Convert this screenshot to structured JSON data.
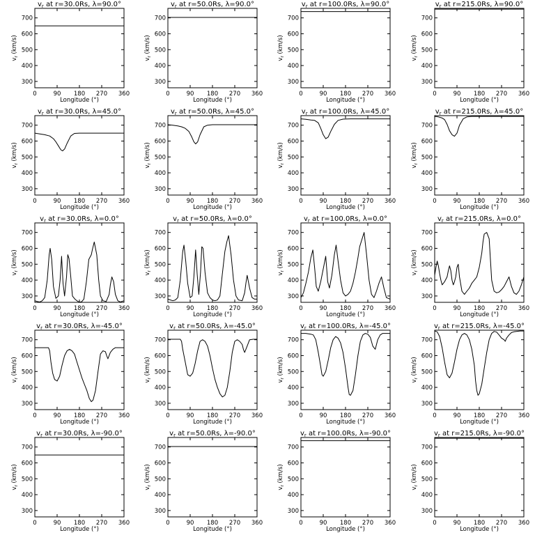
{
  "axis_common": {
    "xlabel": "Longitude (°)",
    "ylabel_main": "v",
    "ylabel_sub": "r",
    "ylabel_rest": " (km/s)",
    "xlim": [
      0,
      360
    ],
    "ylim": [
      260,
      760
    ],
    "xticks": [
      0,
      90,
      180,
      270,
      360
    ],
    "yticks": [
      300,
      400,
      500,
      600,
      700
    ]
  },
  "chart_data": [
    {
      "type": "line",
      "title_main": "v",
      "title_sub": "r",
      "title_rest": " at r=30.0Rs, λ=90.0°",
      "radius": "30.0Rs",
      "latitude": "90.0°",
      "x": [
        0,
        360
      ],
      "y": [
        650,
        650
      ]
    },
    {
      "type": "line",
      "title_main": "v",
      "title_sub": "r",
      "title_rest": " at r=50.0Rs, λ=90.0°",
      "radius": "50.0Rs",
      "latitude": "90.0°",
      "x": [
        0,
        360
      ],
      "y": [
        703,
        703
      ]
    },
    {
      "type": "line",
      "title_main": "v",
      "title_sub": "r",
      "title_rest": " at r=100.0Rs, λ=90.0°",
      "radius": "100.0Rs",
      "latitude": "90.0°",
      "x": [
        0,
        360
      ],
      "y": [
        740,
        740
      ]
    },
    {
      "type": "line",
      "title_main": "v",
      "title_sub": "r",
      "title_rest": " at r=215.0Rs, λ=90.0°",
      "radius": "215.0Rs",
      "latitude": "90.0°",
      "x": [
        0,
        360
      ],
      "y": [
        755,
        755
      ]
    },
    {
      "type": "line",
      "title_main": "v",
      "title_sub": "r",
      "title_rest": " at r=30.0Rs, λ=45.0°",
      "radius": "30.0Rs",
      "latitude": "45.0°",
      "x": [
        0,
        20,
        40,
        60,
        75,
        85,
        95,
        105,
        112,
        120,
        130,
        145,
        160,
        180,
        220,
        270,
        320,
        360
      ],
      "y": [
        650,
        645,
        640,
        632,
        615,
        595,
        570,
        545,
        538,
        550,
        585,
        632,
        648,
        650,
        650,
        650,
        650,
        650
      ]
    },
    {
      "type": "line",
      "title_main": "v",
      "title_sub": "r",
      "title_rest": " at r=50.0Rs, λ=45.0°",
      "radius": "50.0Rs",
      "latitude": "45.0°",
      "x": [
        0,
        20,
        40,
        55,
        70,
        85,
        95,
        105,
        112,
        120,
        130,
        145,
        160,
        180,
        220,
        270,
        320,
        360
      ],
      "y": [
        703,
        700,
        695,
        690,
        680,
        660,
        630,
        595,
        582,
        595,
        640,
        690,
        700,
        703,
        703,
        703,
        703,
        703
      ]
    },
    {
      "type": "line",
      "title_main": "v",
      "title_sub": "r",
      "title_rest": " at r=100.0Rs, λ=45.0°",
      "radius": "100.0Rs",
      "latitude": "45.0°",
      "x": [
        0,
        20,
        40,
        55,
        70,
        80,
        90,
        100,
        110,
        120,
        135,
        150,
        170,
        200,
        250,
        300,
        360
      ],
      "y": [
        740,
        737,
        733,
        730,
        715,
        680,
        640,
        615,
        625,
        660,
        705,
        730,
        738,
        740,
        740,
        740,
        740
      ]
    },
    {
      "type": "line",
      "title_main": "v",
      "title_sub": "r",
      "title_rest": " at r=215.0Rs, λ=45.0°",
      "radius": "215.0Rs",
      "latitude": "45.0°",
      "x": [
        0,
        15,
        30,
        40,
        50,
        60,
        70,
        80,
        90,
        100,
        115,
        130,
        150,
        180,
        230,
        290,
        360
      ],
      "y": [
        755,
        752,
        745,
        735,
        705,
        665,
        640,
        630,
        650,
        700,
        740,
        752,
        755,
        755,
        755,
        755,
        755
      ]
    },
    {
      "type": "line",
      "title_main": "v",
      "title_sub": "r",
      "title_rest": " at r=30.0Rs, λ=0.0°",
      "radius": "30.0Rs",
      "latitude": "0.0°",
      "x": [
        0,
        10,
        20,
        30,
        40,
        50,
        58,
        62,
        68,
        75,
        85,
        95,
        102,
        108,
        114,
        120,
        128,
        133,
        138,
        145,
        152,
        162,
        170,
        178,
        188,
        198,
        208,
        218,
        228,
        232,
        240,
        250,
        258,
        265,
        275,
        288,
        300,
        305,
        311,
        318,
        325,
        335,
        345,
        360
      ],
      "y": [
        270,
        265,
        262,
        270,
        290,
        400,
        560,
        600,
        530,
        360,
        285,
        300,
        400,
        550,
        380,
        300,
        420,
        560,
        535,
        420,
        300,
        280,
        270,
        262,
        262,
        280,
        390,
        530,
        560,
        590,
        640,
        560,
        400,
        300,
        270,
        265,
        310,
        370,
        420,
        390,
        310,
        270,
        262,
        270
      ]
    },
    {
      "type": "line",
      "title_main": "v",
      "title_sub": "r",
      "title_rest": " at r=50.0Rs, λ=0.0°",
      "radius": "50.0Rs",
      "latitude": "0.0°",
      "x": [
        0,
        10,
        20,
        30,
        40,
        50,
        60,
        65,
        72,
        80,
        90,
        98,
        105,
        112,
        118,
        125,
        132,
        137,
        142,
        150,
        160,
        170,
        180,
        190,
        200,
        210,
        220,
        230,
        238,
        245,
        255,
        265,
        275,
        285,
        300,
        310,
        315,
        320,
        330,
        340,
        350,
        360
      ],
      "y": [
        280,
        275,
        270,
        275,
        290,
        400,
        580,
        620,
        520,
        380,
        290,
        300,
        420,
        590,
        440,
        310,
        450,
        610,
        600,
        450,
        320,
        290,
        275,
        270,
        275,
        300,
        440,
        580,
        640,
        680,
        560,
        400,
        300,
        275,
        270,
        320,
        380,
        430,
        350,
        290,
        280,
        280
      ]
    },
    {
      "type": "line",
      "title_main": "v",
      "title_sub": "r",
      "title_rest": " at r=100.0Rs, λ=0.0°",
      "radius": "100.0Rs",
      "latitude": "0.0°",
      "x": [
        0,
        10,
        20,
        30,
        40,
        48,
        55,
        62,
        70,
        80,
        90,
        100,
        108,
        115,
        125,
        135,
        142,
        150,
        160,
        170,
        180,
        190,
        200,
        210,
        220,
        230,
        237,
        245,
        255,
        265,
        275,
        285,
        295,
        305,
        315,
        325,
        335,
        345,
        360
      ],
      "y": [
        290,
        320,
        380,
        450,
        540,
        590,
        480,
        360,
        330,
        390,
        470,
        550,
        390,
        350,
        430,
        560,
        620,
        520,
        400,
        320,
        300,
        310,
        330,
        380,
        450,
        540,
        610,
        650,
        700,
        560,
        400,
        310,
        290,
        330,
        380,
        420,
        350,
        290,
        280
      ]
    },
    {
      "type": "line",
      "title_main": "v",
      "title_sub": "r",
      "title_rest": " at r=215.0Rs, λ=0.0°",
      "radius": "215.0Rs",
      "latitude": "0.0°",
      "x": [
        0,
        5,
        10,
        15,
        20,
        25,
        30,
        40,
        50,
        55,
        60,
        65,
        70,
        75,
        80,
        85,
        90,
        95,
        100,
        110,
        120,
        130,
        140,
        150,
        160,
        170,
        180,
        190,
        195,
        200,
        210,
        220,
        230,
        240,
        250,
        260,
        270,
        280,
        290,
        300,
        310,
        320,
        330,
        340,
        350,
        360
      ],
      "y": [
        430,
        480,
        520,
        490,
        440,
        400,
        370,
        390,
        420,
        460,
        490,
        460,
        400,
        370,
        390,
        420,
        480,
        500,
        420,
        330,
        310,
        330,
        350,
        380,
        400,
        420,
        480,
        570,
        640,
        690,
        700,
        660,
        400,
        330,
        320,
        325,
        340,
        360,
        390,
        420,
        360,
        320,
        310,
        330,
        370,
        420
      ]
    },
    {
      "type": "line",
      "title_main": "v",
      "title_sub": "r",
      "title_rest": " at r=30.0Rs, λ=-45.0°",
      "radius": "30.0Rs",
      "latitude": "-45.0°",
      "x": [
        0,
        20,
        40,
        55,
        60,
        65,
        72,
        80,
        90,
        100,
        110,
        120,
        130,
        140,
        150,
        160,
        170,
        180,
        190,
        200,
        210,
        220,
        228,
        235,
        245,
        255,
        265,
        275,
        285,
        290,
        295,
        305,
        315,
        325,
        340,
        360
      ],
      "y": [
        650,
        650,
        650,
        650,
        630,
        560,
        490,
        450,
        440,
        470,
        540,
        600,
        630,
        640,
        630,
        610,
        560,
        510,
        460,
        420,
        380,
        330,
        310,
        320,
        380,
        500,
        610,
        630,
        625,
        600,
        580,
        620,
        640,
        650,
        650,
        650
      ]
    },
    {
      "type": "line",
      "title_main": "v",
      "title_sub": "r",
      "title_rest": " at r=50.0Rs, λ=-45.0°",
      "radius": "50.0Rs",
      "latitude": "-45.0°",
      "x": [
        0,
        20,
        40,
        50,
        55,
        60,
        70,
        80,
        90,
        100,
        110,
        120,
        130,
        140,
        150,
        160,
        170,
        180,
        190,
        200,
        210,
        220,
        230,
        240,
        250,
        260,
        270,
        280,
        290,
        300,
        305,
        310,
        320,
        330,
        345,
        360
      ],
      "y": [
        703,
        703,
        703,
        703,
        690,
        640,
        560,
        480,
        470,
        490,
        550,
        630,
        690,
        700,
        690,
        660,
        600,
        520,
        450,
        400,
        360,
        340,
        350,
        400,
        500,
        620,
        690,
        700,
        690,
        670,
        640,
        620,
        660,
        700,
        703,
        703
      ]
    },
    {
      "type": "line",
      "title_main": "v",
      "title_sub": "r",
      "title_rest": " at r=100.0Rs, λ=-45.0°",
      "radius": "100.0Rs",
      "latitude": "-45.0°",
      "x": [
        0,
        20,
        40,
        50,
        60,
        70,
        80,
        85,
        90,
        100,
        110,
        120,
        130,
        140,
        150,
        160,
        170,
        180,
        190,
        195,
        200,
        210,
        220,
        230,
        240,
        250,
        260,
        270,
        280,
        290,
        300,
        310,
        320,
        330,
        345,
        360
      ],
      "y": [
        740,
        740,
        735,
        730,
        700,
        620,
        530,
        480,
        470,
        500,
        570,
        650,
        700,
        720,
        710,
        680,
        620,
        520,
        400,
        355,
        350,
        380,
        480,
        600,
        690,
        730,
        740,
        735,
        715,
        660,
        640,
        700,
        730,
        740,
        740,
        740
      ]
    },
    {
      "type": "line",
      "title_main": "v",
      "title_sub": "r",
      "title_rest": " at r=215.0Rs, λ=-45.0°",
      "radius": "215.0Rs",
      "latitude": "-45.0°",
      "x": [
        0,
        10,
        20,
        30,
        40,
        50,
        60,
        70,
        80,
        90,
        100,
        110,
        120,
        130,
        140,
        150,
        160,
        165,
        170,
        175,
        180,
        190,
        200,
        210,
        220,
        230,
        240,
        250,
        260,
        270,
        280,
        285,
        290,
        300,
        310,
        320,
        330,
        345,
        360
      ],
      "y": [
        755,
        750,
        720,
        650,
        560,
        480,
        460,
        490,
        560,
        640,
        700,
        730,
        740,
        730,
        700,
        640,
        540,
        440,
        380,
        350,
        360,
        420,
        520,
        620,
        700,
        740,
        752,
        748,
        730,
        710,
        700,
        690,
        710,
        730,
        745,
        750,
        752,
        755,
        755
      ]
    },
    {
      "type": "line",
      "title_main": "v",
      "title_sub": "r",
      "title_rest": " at r=30.0Rs, λ=-90.0°",
      "radius": "30.0Rs",
      "latitude": "-90.0°",
      "x": [
        0,
        360
      ],
      "y": [
        650,
        650
      ]
    },
    {
      "type": "line",
      "title_main": "v",
      "title_sub": "r",
      "title_rest": " at r=50.0Rs, λ=-90.0°",
      "radius": "50.0Rs",
      "latitude": "-90.0°",
      "x": [
        0,
        360
      ],
      "y": [
        703,
        703
      ]
    },
    {
      "type": "line",
      "title_main": "v",
      "title_sub": "r",
      "title_rest": " at r=100.0Rs, λ=-90.0°",
      "radius": "100.0Rs",
      "latitude": "-90.0°",
      "x": [
        0,
        360
      ],
      "y": [
        740,
        740
      ]
    },
    {
      "type": "line",
      "title_main": "v",
      "title_sub": "r",
      "title_rest": " at r=215.0Rs, λ=-90.0°",
      "radius": "215.0Rs",
      "latitude": "-90.0°",
      "x": [
        0,
        360
      ],
      "y": [
        755,
        755
      ]
    }
  ]
}
